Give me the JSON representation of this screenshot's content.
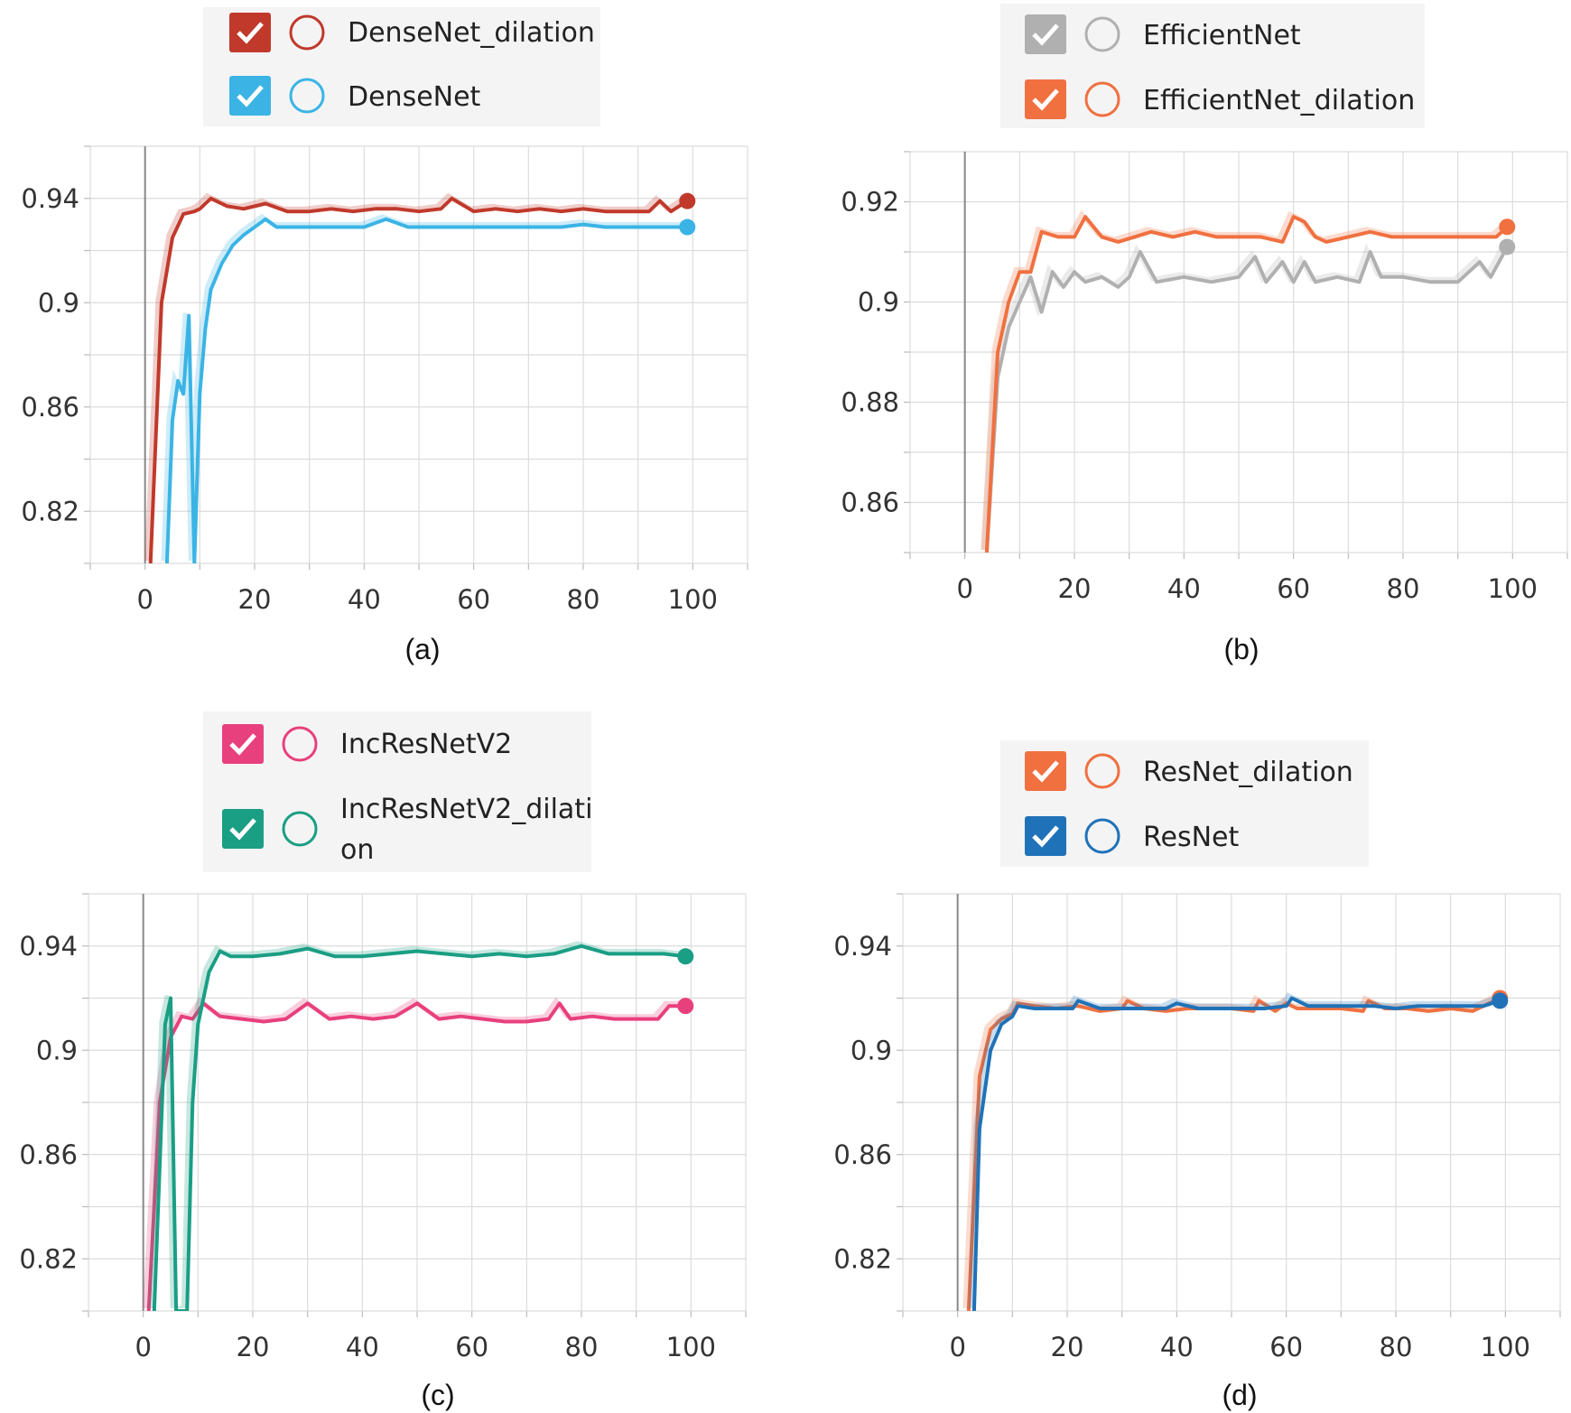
{
  "chart_data": [
    {
      "type": "line",
      "caption": "(a)",
      "xlim": [
        -10,
        110
      ],
      "ylim": [
        0.8,
        0.96
      ],
      "xticks": [
        0,
        20,
        40,
        60,
        80,
        100
      ],
      "xtick_labels": [
        "0",
        "20",
        "40",
        "60",
        "80",
        "100"
      ],
      "yticks": [
        0.82,
        0.86,
        0.9,
        0.94
      ],
      "ytick_labels": [
        "0.82",
        "0.86",
        "0.9",
        "0.94"
      ],
      "grid": true,
      "series": [
        {
          "name": "DenseNet_dilation",
          "color": "#c0392b",
          "x": [
            1,
            3,
            5,
            7,
            9,
            10,
            12,
            15,
            18,
            22,
            26,
            30,
            34,
            38,
            42,
            46,
            50,
            54,
            56,
            60,
            64,
            68,
            72,
            76,
            80,
            84,
            88,
            92,
            94,
            96,
            99
          ],
          "y": [
            0.8,
            0.9,
            0.925,
            0.934,
            0.935,
            0.936,
            0.94,
            0.937,
            0.936,
            0.938,
            0.935,
            0.935,
            0.936,
            0.935,
            0.936,
            0.936,
            0.935,
            0.936,
            0.94,
            0.935,
            0.936,
            0.935,
            0.936,
            0.935,
            0.936,
            0.935,
            0.935,
            0.935,
            0.939,
            0.935,
            0.939
          ]
        },
        {
          "name": "DenseNet",
          "color": "#3bb4e5",
          "x": [
            4,
            5,
            6,
            7,
            8,
            9,
            10,
            11,
            12,
            14,
            16,
            18,
            20,
            22,
            24,
            28,
            32,
            36,
            40,
            44,
            48,
            52,
            56,
            60,
            64,
            68,
            72,
            76,
            80,
            84,
            88,
            92,
            96,
            99
          ],
          "y": [
            0.8,
            0.855,
            0.87,
            0.865,
            0.895,
            0.8,
            0.865,
            0.89,
            0.905,
            0.915,
            0.922,
            0.926,
            0.929,
            0.932,
            0.929,
            0.929,
            0.929,
            0.929,
            0.929,
            0.932,
            0.929,
            0.929,
            0.929,
            0.929,
            0.929,
            0.929,
            0.929,
            0.929,
            0.93,
            0.929,
            0.929,
            0.929,
            0.929,
            0.929
          ]
        }
      ]
    },
    {
      "type": "line",
      "caption": "(b)",
      "xlim": [
        -10,
        110
      ],
      "ylim": [
        0.85,
        0.93
      ],
      "xticks": [
        0,
        20,
        40,
        60,
        80,
        100
      ],
      "xtick_labels": [
        "0",
        "20",
        "40",
        "60",
        "80",
        "100"
      ],
      "yticks": [
        0.86,
        0.88,
        0.9,
        0.92
      ],
      "ytick_labels": [
        "0.86",
        "0.88",
        "0.9",
        "0.92"
      ],
      "grid": true,
      "series": [
        {
          "name": "EfficientNet",
          "color": "#b0b0b0",
          "x": [
            4,
            6,
            8,
            10,
            12,
            14,
            16,
            18,
            20,
            22,
            25,
            28,
            30,
            32,
            35,
            40,
            45,
            50,
            53,
            55,
            58,
            60,
            62,
            64,
            68,
            72,
            74,
            76,
            80,
            85,
            90,
            94,
            96,
            99
          ],
          "y": [
            0.85,
            0.885,
            0.895,
            0.9,
            0.905,
            0.898,
            0.906,
            0.903,
            0.906,
            0.904,
            0.905,
            0.903,
            0.905,
            0.91,
            0.904,
            0.905,
            0.904,
            0.905,
            0.909,
            0.904,
            0.908,
            0.904,
            0.908,
            0.904,
            0.905,
            0.904,
            0.91,
            0.905,
            0.905,
            0.904,
            0.904,
            0.908,
            0.905,
            0.911
          ]
        },
        {
          "name": "EfficientNet_dilation",
          "color": "#f07040",
          "x": [
            4,
            6,
            8,
            10,
            12,
            14,
            17,
            20,
            22,
            25,
            28,
            31,
            34,
            38,
            42,
            46,
            50,
            54,
            58,
            60,
            62,
            64,
            66,
            70,
            74,
            78,
            82,
            86,
            90,
            94,
            97,
            99
          ],
          "y": [
            0.85,
            0.89,
            0.9,
            0.906,
            0.906,
            0.914,
            0.913,
            0.913,
            0.917,
            0.913,
            0.912,
            0.913,
            0.914,
            0.913,
            0.914,
            0.913,
            0.913,
            0.913,
            0.912,
            0.917,
            0.916,
            0.913,
            0.912,
            0.913,
            0.914,
            0.913,
            0.913,
            0.913,
            0.913,
            0.913,
            0.913,
            0.915
          ]
        }
      ]
    },
    {
      "type": "line",
      "caption": "(c)",
      "xlim": [
        -10,
        110
      ],
      "ylim": [
        0.8,
        0.96
      ],
      "xticks": [
        0,
        20,
        40,
        60,
        80,
        100
      ],
      "xtick_labels": [
        "0",
        "20",
        "40",
        "60",
        "80",
        "100"
      ],
      "yticks": [
        0.82,
        0.86,
        0.9,
        0.94
      ],
      "ytick_labels": [
        "0.82",
        "0.86",
        "0.9",
        "0.94"
      ],
      "grid": true,
      "series": [
        {
          "name": "IncResNetV2",
          "color": "#e8407c",
          "x": [
            1,
            3,
            5,
            7,
            9,
            11,
            14,
            18,
            22,
            26,
            30,
            34,
            38,
            42,
            46,
            50,
            54,
            58,
            62,
            66,
            70,
            74,
            76,
            78,
            82,
            86,
            90,
            94,
            96,
            99
          ],
          "y": [
            0.8,
            0.88,
            0.905,
            0.913,
            0.912,
            0.918,
            0.913,
            0.912,
            0.911,
            0.912,
            0.918,
            0.912,
            0.913,
            0.912,
            0.913,
            0.918,
            0.912,
            0.913,
            0.912,
            0.911,
            0.911,
            0.912,
            0.918,
            0.912,
            0.913,
            0.912,
            0.912,
            0.912,
            0.917,
            0.917
          ]
        },
        {
          "name": "IncResNetV2_dilation",
          "color": "#1a9e84",
          "x": [
            2,
            4,
            5,
            6,
            7,
            8,
            9,
            10,
            12,
            14,
            16,
            20,
            25,
            30,
            35,
            40,
            45,
            50,
            55,
            60,
            65,
            70,
            75,
            80,
            85,
            90,
            95,
            99
          ],
          "y": [
            0.8,
            0.91,
            0.92,
            0.8,
            0.8,
            0.8,
            0.88,
            0.91,
            0.93,
            0.938,
            0.936,
            0.936,
            0.937,
            0.939,
            0.936,
            0.936,
            0.937,
            0.938,
            0.937,
            0.936,
            0.937,
            0.936,
            0.937,
            0.94,
            0.937,
            0.937,
            0.937,
            0.936
          ]
        }
      ]
    },
    {
      "type": "line",
      "caption": "(d)",
      "xlim": [
        -10,
        110
      ],
      "ylim": [
        0.8,
        0.96
      ],
      "xticks": [
        0,
        20,
        40,
        60,
        80,
        100
      ],
      "xtick_labels": [
        "0",
        "20",
        "40",
        "60",
        "80",
        "100"
      ],
      "yticks": [
        0.82,
        0.86,
        0.9,
        0.94
      ],
      "ytick_labels": [
        "0.82",
        "0.86",
        "0.9",
        "0.94"
      ],
      "grid": true,
      "series": [
        {
          "name": "ResNet_dilation",
          "color": "#f07040",
          "x": [
            2,
            4,
            6,
            8,
            10,
            11,
            14,
            18,
            22,
            26,
            30,
            31,
            34,
            38,
            42,
            46,
            50,
            54,
            55,
            58,
            60,
            62,
            66,
            70,
            74,
            75,
            78,
            82,
            86,
            90,
            94,
            96,
            99
          ],
          "y": [
            0.8,
            0.89,
            0.908,
            0.912,
            0.914,
            0.918,
            0.917,
            0.916,
            0.917,
            0.915,
            0.916,
            0.919,
            0.916,
            0.915,
            0.916,
            0.916,
            0.916,
            0.915,
            0.919,
            0.915,
            0.918,
            0.916,
            0.916,
            0.916,
            0.915,
            0.919,
            0.916,
            0.916,
            0.915,
            0.916,
            0.915,
            0.917,
            0.92
          ]
        },
        {
          "name": "ResNet",
          "color": "#1f72b8",
          "x": [
            3,
            4,
            6,
            8,
            10,
            11,
            14,
            18,
            21,
            22,
            26,
            30,
            34,
            38,
            40,
            44,
            48,
            52,
            56,
            60,
            61,
            64,
            68,
            72,
            76,
            80,
            84,
            88,
            92,
            96,
            99
          ],
          "y": [
            0.8,
            0.87,
            0.9,
            0.91,
            0.913,
            0.917,
            0.916,
            0.916,
            0.916,
            0.919,
            0.916,
            0.916,
            0.916,
            0.916,
            0.918,
            0.916,
            0.916,
            0.916,
            0.916,
            0.917,
            0.92,
            0.917,
            0.917,
            0.917,
            0.917,
            0.916,
            0.917,
            0.917,
            0.917,
            0.917,
            0.919
          ]
        }
      ]
    }
  ]
}
